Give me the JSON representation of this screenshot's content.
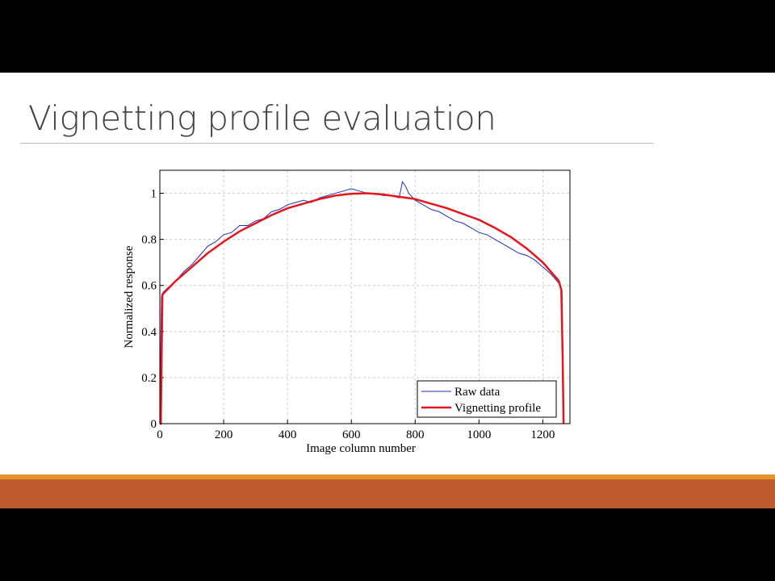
{
  "slide_title": "Vignetting profile evaluation",
  "chart_data": {
    "type": "line",
    "xlabel": "Image column number",
    "ylabel": "Normalized response",
    "xlim": [
      0,
      1285
    ],
    "ylim": [
      0,
      1.1
    ],
    "xticks": [
      0,
      200,
      400,
      600,
      800,
      1000,
      1200
    ],
    "yticks": [
      0,
      0.2,
      0.4,
      0.6,
      0.8,
      1
    ],
    "grid": true,
    "legend": "lower right",
    "series": [
      {
        "name": "Raw data",
        "color": "#1f2fbf",
        "x": [
          0,
          5,
          10,
          25,
          50,
          75,
          100,
          125,
          150,
          175,
          200,
          225,
          250,
          275,
          300,
          325,
          350,
          375,
          400,
          425,
          450,
          475,
          500,
          525,
          550,
          575,
          600,
          625,
          650,
          675,
          700,
          725,
          750,
          760,
          770,
          780,
          800,
          825,
          850,
          875,
          900,
          925,
          950,
          975,
          1000,
          1025,
          1050,
          1075,
          1100,
          1125,
          1150,
          1175,
          1200,
          1225,
          1250,
          1260,
          1263,
          1266
        ],
        "values": [
          0.05,
          0.55,
          0.57,
          0.59,
          0.62,
          0.66,
          0.69,
          0.73,
          0.77,
          0.79,
          0.82,
          0.83,
          0.86,
          0.86,
          0.88,
          0.89,
          0.92,
          0.93,
          0.95,
          0.96,
          0.97,
          0.96,
          0.98,
          0.99,
          1.0,
          1.01,
          1.02,
          1.01,
          1.0,
          1.0,
          0.99,
          0.99,
          0.98,
          1.05,
          1.03,
          1.0,
          0.97,
          0.95,
          0.93,
          0.92,
          0.9,
          0.88,
          0.87,
          0.85,
          0.83,
          0.82,
          0.8,
          0.78,
          0.76,
          0.74,
          0.73,
          0.71,
          0.68,
          0.65,
          0.61,
          0.58,
          0.3,
          0
        ]
      },
      {
        "name": "Vignetting profile",
        "color": "#e8141c",
        "x": [
          0,
          3,
          8,
          50,
          100,
          150,
          200,
          250,
          300,
          350,
          400,
          450,
          500,
          550,
          600,
          650,
          700,
          750,
          800,
          850,
          900,
          950,
          1000,
          1050,
          1100,
          1150,
          1200,
          1250,
          1258,
          1262,
          1265
        ],
        "values": [
          0,
          0,
          0.56,
          0.62,
          0.68,
          0.74,
          0.79,
          0.835,
          0.87,
          0.905,
          0.935,
          0.955,
          0.975,
          0.99,
          0.998,
          1.0,
          0.995,
          0.985,
          0.975,
          0.955,
          0.935,
          0.91,
          0.885,
          0.85,
          0.81,
          0.76,
          0.7,
          0.62,
          0.58,
          0.3,
          0
        ]
      }
    ]
  }
}
